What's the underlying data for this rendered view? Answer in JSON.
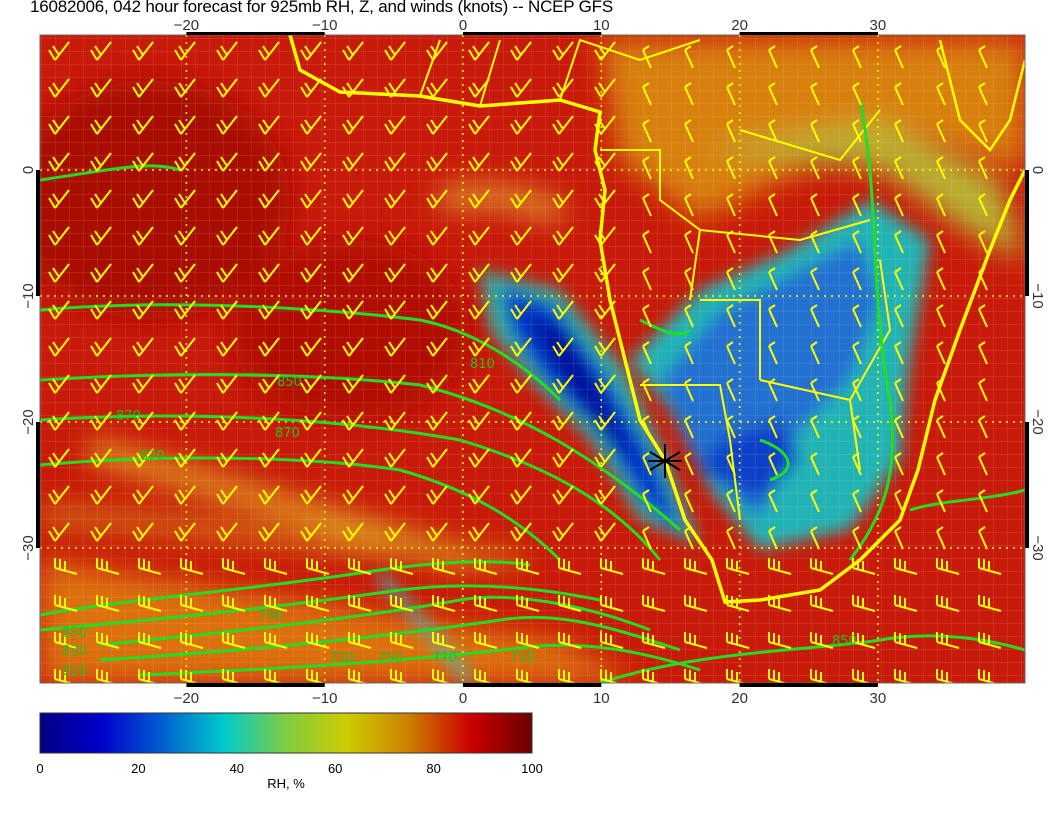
{
  "title": "16082006, 042 hour forecast for 925mb RH, Z, and winds (knots) -- NCEP GFS",
  "map": {
    "lon_ticks": [
      "−20",
      "−10",
      "0",
      "10",
      "20",
      "30"
    ],
    "lon_values": [
      -20,
      -10,
      0,
      10,
      20,
      30
    ],
    "lat_ticks": [
      "0",
      "−10",
      "−20",
      "−30"
    ],
    "lat_values": [
      0,
      -10,
      -20,
      -30
    ],
    "contour_labels": [
      "810",
      "850",
      "870",
      "870",
      "870",
      "850",
      "830",
      "810",
      "790",
      "770",
      "750",
      "730",
      "710",
      "850"
    ],
    "marker": "star",
    "colors": {
      "coastline": "#ffff00",
      "contours": "#22dd22",
      "wind_barbs": "#ffff00",
      "marker": "#000000"
    }
  },
  "colorbar": {
    "ticks": [
      "0",
      "20",
      "40",
      "60",
      "80",
      "100"
    ],
    "label": "RH, %",
    "range": [
      0,
      100
    ],
    "stops": [
      "#00007f",
      "#0000cc",
      "#0060d0",
      "#00cccc",
      "#80cc40",
      "#cccc00",
      "#cc8000",
      "#cc0000",
      "#6a0000"
    ]
  }
}
